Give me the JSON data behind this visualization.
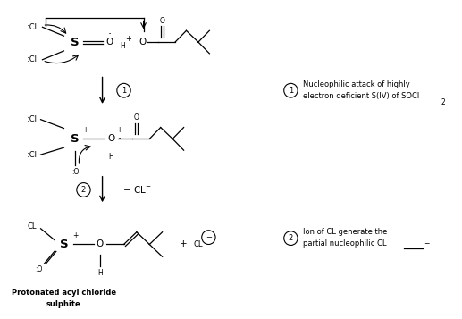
{
  "bg_color": "#ffffff",
  "fig_width": 5.17,
  "fig_height": 3.57,
  "dpi": 100,
  "annotation1_line1": "Nucleophilic attack of highly",
  "annotation1_line2": "electron deficient S(IV) of SOCl",
  "annotation1_sub": "2",
  "annotation2_line1": "Ion of CL generate the",
  "annotation2_line2": "partial nucleophilic CL",
  "bottom_label1": "Protonated acyl chloride",
  "bottom_label2": "sulphite"
}
